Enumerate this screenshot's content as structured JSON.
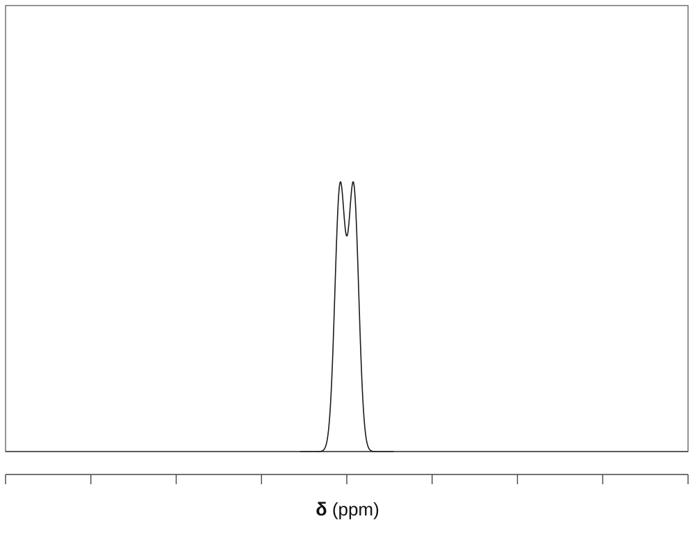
{
  "chart_data": {
    "type": "line",
    "title": "",
    "xlabel_symbol": "δ",
    "xlabel_unit": "(ppm)",
    "ylabel": "",
    "x_reversed": true,
    "xlim": [
      0,
      8
    ],
    "ylim": [
      0,
      1
    ],
    "tick_count": 9,
    "tick_labels_shown": false,
    "grid": false,
    "legend": "none",
    "series": [
      {
        "shape": "doublet",
        "peaks": [
          {
            "x": 4.08,
            "y": 1.0
          },
          {
            "x": 3.92,
            "y": 1.0
          }
        ],
        "valley_y": 0.11,
        "linewidth": 0.085
      }
    ],
    "colors": {
      "line": "#1a1a1a",
      "frame": "#5a5a5a"
    }
  }
}
